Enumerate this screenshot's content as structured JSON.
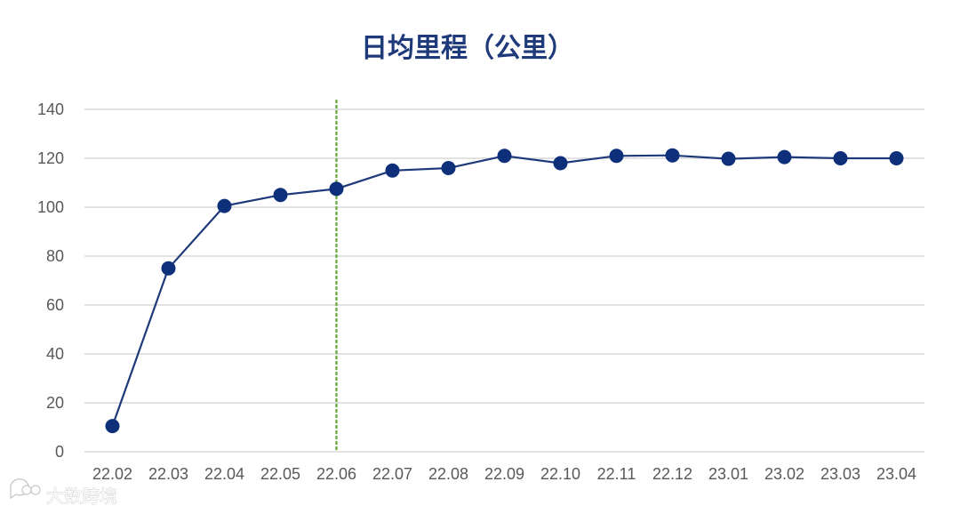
{
  "chart_data": {
    "type": "line",
    "title": "日均里程（公里）",
    "xlabel": "",
    "ylabel": "",
    "categories": [
      "22.02",
      "22.03",
      "22.04",
      "22.05",
      "22.06",
      "22.07",
      "22.08",
      "22.09",
      "22.10",
      "22.11",
      "22.12",
      "23.01",
      "23.02",
      "23.03",
      "23.04"
    ],
    "series": [
      {
        "values": [
          10.5,
          75,
          100.5,
          105,
          107.5,
          115,
          116,
          121,
          118,
          121,
          121.2,
          119.8,
          120.5,
          120,
          120
        ]
      }
    ],
    "ylim": [
      0,
      140
    ],
    "yticks": [
      0,
      20,
      40,
      60,
      80,
      100,
      120,
      140
    ],
    "grid": true,
    "legend": "none",
    "reference_line": {
      "at_category": "22.06",
      "style": "dotted",
      "color": "#70ad47"
    },
    "colors": {
      "line": "#1f3a7a",
      "marker": "#0e2f7a",
      "title": "#1f3a7a",
      "grid": "#d9d9d9",
      "tick_text": "#595959"
    }
  },
  "watermark": {
    "text": "大数跨境",
    "icon": "chat-bubble-logo-icon"
  }
}
